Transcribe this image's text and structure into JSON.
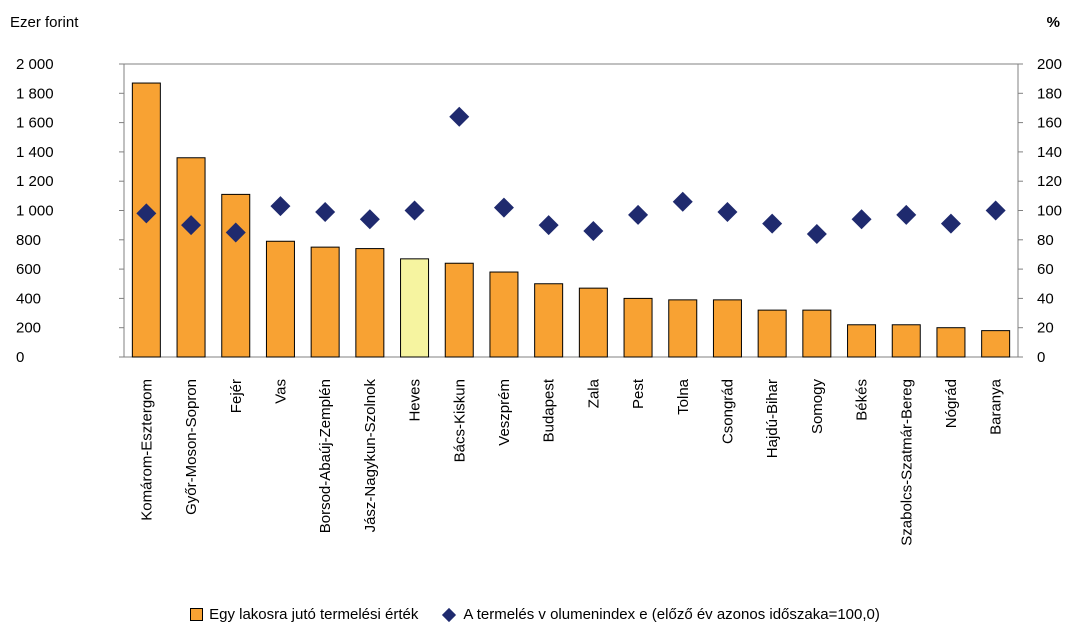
{
  "colors": {
    "bar": "#f8a233",
    "bar_highlight": "#f6f4a0",
    "bar_stroke": "#000000",
    "marker": "#1f2a6e"
  },
  "chart_data": {
    "type": "bar",
    "y_unit_left": "Ezer forint",
    "y_unit_right": "%",
    "categories": [
      "Komárom-Esztergom",
      "Győr-Moson-Sopron",
      "Fejér",
      "Vas",
      "Borsod-Abaúj-Zemplén",
      "Jász-Nagykun-Szolnok",
      "Heves",
      "Bács-Kiskun",
      "Veszprém",
      "Budapest",
      "Zala",
      "Pest",
      "Tolna",
      "Csongrád",
      "Hajdú-Bihar",
      "Somogy",
      "Békés",
      "Szabolcs-Szatmár-Bereg",
      "Nógrád",
      "Baranya"
    ],
    "highlight_category": "Heves",
    "series": [
      {
        "name": "Egy lakosra jutó termelési érték",
        "type": "bar",
        "axis": "left",
        "values": [
          1870,
          1360,
          1110,
          790,
          750,
          740,
          670,
          640,
          580,
          500,
          470,
          400,
          390,
          390,
          320,
          320,
          220,
          220,
          200,
          180
        ]
      },
      {
        "name": "A termelés v olumenindex e (előző év azonos időszaka=100,0)",
        "type": "scatter",
        "marker": "diamond",
        "axis": "right",
        "values": [
          98,
          90,
          85,
          103,
          99,
          94,
          100,
          164,
          102,
          90,
          86,
          97,
          106,
          99,
          91,
          84,
          94,
          97,
          91,
          100
        ]
      }
    ],
    "ylim_left": [
      0,
      2000
    ],
    "ylim_right": [
      0,
      200
    ],
    "yticks_left": [
      "0",
      "200",
      "400",
      "600",
      "800",
      "1 000",
      "1 200",
      "1 400",
      "1 600",
      "1 800",
      "2 000"
    ],
    "yticks_right": [
      "0",
      "20",
      "40",
      "60",
      "80",
      "100",
      "120",
      "140",
      "160",
      "180",
      "200"
    ],
    "legend_position": "bottom",
    "grid": false
  }
}
